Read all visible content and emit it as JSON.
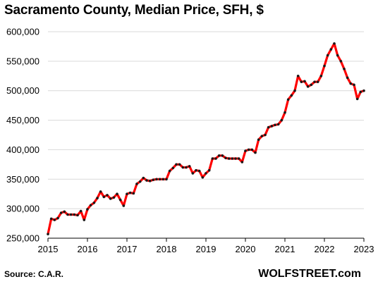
{
  "chart_data": {
    "type": "line",
    "title": "Sacramento County, Median Price, SFH, $",
    "xlabel": "",
    "ylabel": "",
    "source": "Source: C.A.R.",
    "brand": "WOLFSTREET.com",
    "xlim": [
      2015,
      2023
    ],
    "ylim": [
      250000,
      600000
    ],
    "x_ticks": [
      2015,
      2016,
      2017,
      2018,
      2019,
      2020,
      2021,
      2022,
      2023
    ],
    "x_tick_labels": [
      "2015",
      "2016",
      "2017",
      "2018",
      "2019",
      "2020",
      "2021",
      "2022",
      "2023"
    ],
    "y_ticks": [
      250000,
      300000,
      350000,
      400000,
      450000,
      500000,
      550000,
      600000
    ],
    "y_tick_labels": [
      "250,000",
      "300,000",
      "350,000",
      "400,000",
      "450,000",
      "500,000",
      "550,000",
      "600,000"
    ],
    "grid": "horizontal",
    "line_color": "#ff0000",
    "marker_color": "#1a1a1a",
    "series": [
      {
        "x": [
          "2015-01",
          "2015-02",
          "2015-03",
          "2015-04",
          "2015-05",
          "2015-06",
          "2015-07",
          "2015-08",
          "2015-09",
          "2015-10",
          "2015-11",
          "2015-12",
          "2016-01",
          "2016-02",
          "2016-03",
          "2016-04",
          "2016-05",
          "2016-06",
          "2016-07",
          "2016-08",
          "2016-09",
          "2016-10",
          "2016-11",
          "2016-12",
          "2017-01",
          "2017-02",
          "2017-03",
          "2017-04",
          "2017-05",
          "2017-06",
          "2017-07",
          "2017-08",
          "2017-09",
          "2017-10",
          "2017-11",
          "2017-12",
          "2018-01",
          "2018-02",
          "2018-03",
          "2018-04",
          "2018-05",
          "2018-06",
          "2018-07",
          "2018-08",
          "2018-09",
          "2018-10",
          "2018-11",
          "2018-12",
          "2019-01",
          "2019-02",
          "2019-03",
          "2019-04",
          "2019-05",
          "2019-06",
          "2019-07",
          "2019-08",
          "2019-09",
          "2019-10",
          "2019-11",
          "2019-12",
          "2020-01",
          "2020-02",
          "2020-03",
          "2020-04",
          "2020-05",
          "2020-06",
          "2020-07",
          "2020-08",
          "2020-09",
          "2020-10",
          "2020-11",
          "2020-12",
          "2021-01",
          "2021-02",
          "2021-03",
          "2021-04",
          "2021-05",
          "2021-06",
          "2021-07",
          "2021-08",
          "2021-09",
          "2021-10",
          "2021-11",
          "2021-12",
          "2022-01",
          "2022-02",
          "2022-03",
          "2022-04",
          "2022-05",
          "2022-06",
          "2022-07",
          "2022-08",
          "2022-09",
          "2022-10",
          "2022-11",
          "2022-12",
          "2023-01"
        ],
        "values": [
          257000,
          283000,
          281000,
          284000,
          293000,
          295000,
          290000,
          290000,
          290000,
          289000,
          296000,
          281000,
          299000,
          306000,
          310000,
          318000,
          329000,
          320000,
          323000,
          317000,
          319000,
          325000,
          315000,
          305000,
          325000,
          327000,
          326000,
          342000,
          346000,
          352000,
          348000,
          347000,
          349000,
          350000,
          350000,
          350000,
          350000,
          364000,
          369000,
          375000,
          375000,
          370000,
          370000,
          372000,
          360000,
          365000,
          364000,
          353000,
          360000,
          365000,
          385000,
          385000,
          390000,
          390000,
          386000,
          385000,
          385000,
          385000,
          385000,
          379000,
          398000,
          400000,
          400000,
          395000,
          417000,
          423000,
          425000,
          438000,
          440000,
          442000,
          443000,
          450000,
          463000,
          485000,
          492000,
          500000,
          525000,
          515000,
          516000,
          507000,
          510000,
          515000,
          515000,
          525000,
          542000,
          560000,
          570000,
          580000,
          560000,
          550000,
          537000,
          522000,
          512000,
          510000,
          486000,
          498000,
          500000
        ]
      }
    ]
  }
}
